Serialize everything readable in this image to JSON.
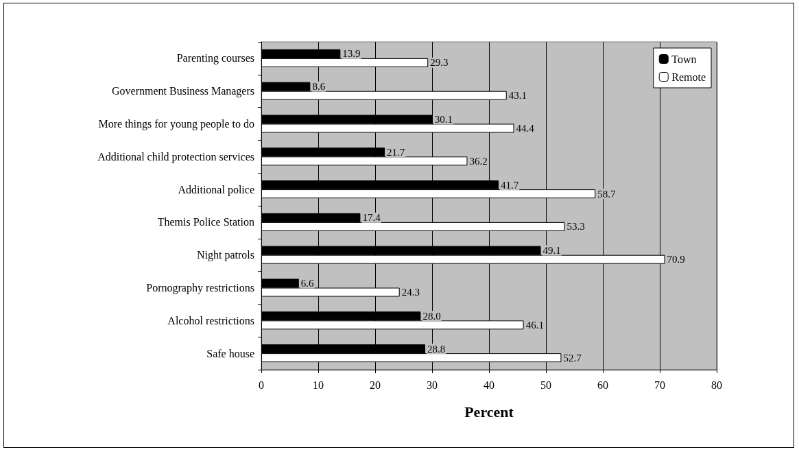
{
  "chart_data": {
    "type": "bar",
    "orientation": "horizontal",
    "xlabel": "Percent",
    "categories": [
      "Parenting courses",
      "Government Business Managers",
      "More things for young people to do",
      "Additional child protection services",
      "Additional police",
      "Themis Police Station",
      "Night patrols",
      "Pornography restrictions",
      "Alcohol restrictions",
      "Safe house"
    ],
    "series": [
      {
        "name": "Town",
        "color": "#000000",
        "values": [
          13.9,
          8.6,
          30.1,
          21.7,
          41.7,
          17.4,
          49.1,
          6.6,
          28.0,
          28.8
        ],
        "value_labels": [
          "13.9",
          "8.6",
          "30.1",
          "21.7",
          "41.7",
          "17.4",
          "49.1",
          "6.6",
          "28.0",
          "28.8"
        ]
      },
      {
        "name": "Remote",
        "color": "#ffffff",
        "values": [
          29.3,
          43.1,
          44.4,
          36.2,
          58.7,
          53.3,
          70.9,
          24.3,
          46.1,
          52.7
        ],
        "value_labels": [
          "29.3",
          "43.1",
          "44.4",
          "36.2",
          "58.7",
          "53.3",
          "70.9",
          "24.3",
          "46.1",
          "52.7"
        ]
      }
    ],
    "xlim": [
      0,
      80
    ],
    "xticks": [
      0,
      10,
      20,
      30,
      40,
      50,
      60,
      70,
      80
    ],
    "grid": "x",
    "legend": "top right"
  }
}
